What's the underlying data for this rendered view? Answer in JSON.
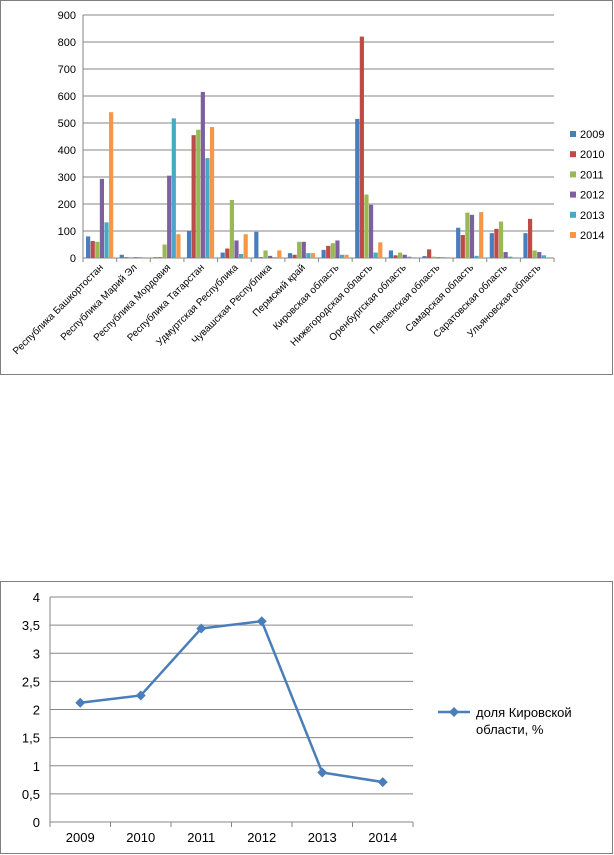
{
  "chart_data": [
    {
      "type": "bar",
      "title": "",
      "xlabel": "",
      "ylabel": "",
      "ylim": [
        0,
        900
      ],
      "yticks": [
        0,
        100,
        200,
        300,
        400,
        500,
        600,
        700,
        800,
        900
      ],
      "grid": true,
      "legend_position": "right",
      "categories": [
        "Республика Башкортостан",
        "Республика Марий Эл",
        "Республика Мордовия",
        "Республика Татарстан",
        "Удмуртская Республика",
        "Чувашская Республика",
        "Пермский край",
        "Кировская область",
        "Нижегородская область",
        "Оренбургская область",
        "Пензенская область",
        "Самарская область",
        "Саратовская область",
        "Ульяновская область"
      ],
      "series": [
        {
          "name": "2009",
          "color": "#4a7ebb",
          "values": [
            80,
            12,
            3,
            100,
            20,
            97,
            18,
            30,
            515,
            28,
            7,
            112,
            92,
            92
          ]
        },
        {
          "name": "2010",
          "color": "#be4b48",
          "values": [
            63,
            3,
            3,
            455,
            35,
            3,
            12,
            45,
            820,
            10,
            32,
            85,
            108,
            145
          ]
        },
        {
          "name": "2011",
          "color": "#98b954",
          "values": [
            60,
            3,
            50,
            475,
            215,
            28,
            60,
            55,
            235,
            20,
            5,
            168,
            135,
            28
          ]
        },
        {
          "name": "2012",
          "color": "#7d60a0",
          "values": [
            293,
            3,
            305,
            615,
            65,
            8,
            60,
            65,
            197,
            12,
            3,
            160,
            22,
            22
          ]
        },
        {
          "name": "2013",
          "color": "#46aac5",
          "values": [
            132,
            3,
            517,
            370,
            15,
            3,
            18,
            12,
            20,
            5,
            3,
            8,
            5,
            10
          ]
        },
        {
          "name": "2014",
          "color": "#f79646",
          "values": [
            540,
            3,
            88,
            485,
            88,
            28,
            18,
            12,
            58,
            3,
            3,
            170,
            3,
            3
          ]
        }
      ]
    },
    {
      "type": "line",
      "title": "",
      "xlabel": "",
      "ylabel": "",
      "x": [
        "2009",
        "2010",
        "2011",
        "2012",
        "2013",
        "2014"
      ],
      "ylim": [
        0,
        4
      ],
      "yticks": [
        "0",
        "0,5",
        "1",
        "1,5",
        "2",
        "2,5",
        "3",
        "3,5",
        "4"
      ],
      "grid": true,
      "legend_position": "right",
      "series": [
        {
          "name": "доля Кировской области, %",
          "color": "#4a7ebb",
          "values": [
            2.12,
            2.25,
            3.44,
            3.57,
            0.88,
            0.71
          ]
        }
      ],
      "legend_lines": [
        "доля Кировской",
        "области, %"
      ]
    }
  ]
}
